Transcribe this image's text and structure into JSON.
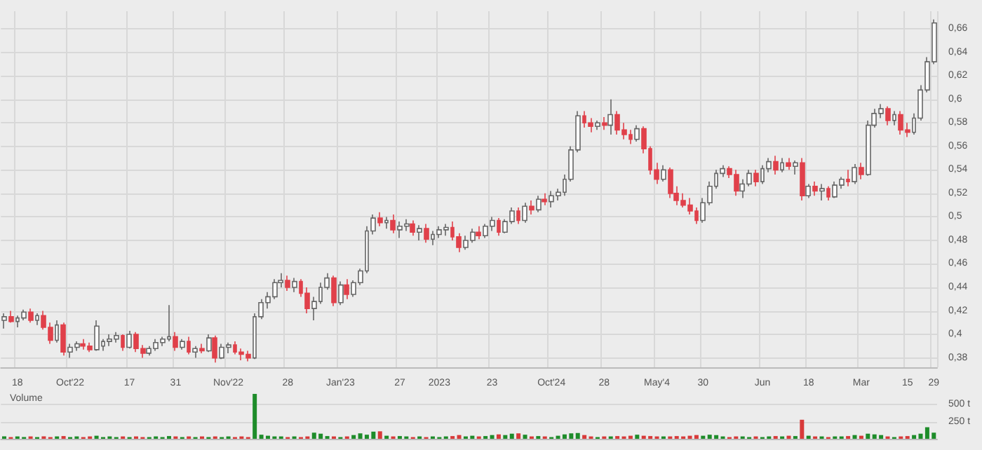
{
  "chart_data": [
    {
      "type": "candlestick",
      "grid": true,
      "colors": [
        "#ffffff",
        "#e0404a",
        "#ffffff",
        "#ffffff",
        "#e0404a",
        "#ffffff",
        "#e0404a",
        "#e0404a",
        "#ffffff",
        "#e0404a",
        "#ffffff",
        "#ffffff",
        "#e0404a",
        "#e0404a",
        "#ffffff",
        "#ffffff",
        "#ffffff",
        "#ffffff",
        "#e0404a",
        "#ffffff",
        "#e0404a",
        "#e0404a",
        "#ffffff",
        "#ffffff",
        "#ffffff",
        "#ffffff",
        "#e0404a",
        "#ffffff",
        "#e0404a",
        "#ffffff",
        "#e0404a",
        "#ffffff",
        "#e0404a",
        "#ffffff",
        "#ffffff",
        "#e0404a",
        "#e0404a",
        "#e0404a",
        "#ffffff",
        "#ffffff",
        "#ffffff",
        "#ffffff",
        "#ffffff",
        "#e0404a",
        "#ffffff",
        "#e0404a",
        "#e0404a",
        "#ffffff",
        "#ffffff",
        "#ffffff",
        "#e0404a",
        "#ffffff",
        "#e0404a",
        "#ffffff",
        "#ffffff",
        "#ffffff",
        "#ffffff",
        "#e0404a",
        "#ffffff",
        "#e0404a",
        "#ffffff",
        "#ffffff",
        "#e0404a",
        "#ffffff",
        "#e0404a",
        "#ffffff",
        "#ffffff",
        "#ffffff",
        "#e0404a",
        "#e0404a",
        "#ffffff",
        "#ffffff",
        "#e0404a",
        "#ffffff",
        "#ffffff",
        "#e0404a",
        "#ffffff",
        "#ffffff",
        "#e0404a",
        "#ffffff",
        "#e0404a",
        "#ffffff",
        "#e0404a",
        "#ffffff",
        "#ffffff",
        "#ffffff",
        "#ffffff",
        "#ffffff",
        "#e0404a",
        "#e0404a",
        "#ffffff",
        "#e0404a",
        "#ffffff",
        "#e0404a",
        "#e0404a",
        "#e0404a",
        "#ffffff",
        "#e0404a",
        "#e0404a",
        "#e0404a",
        "#ffffff",
        "#e0404a",
        "#e0404a",
        "#e0404a",
        "#e0404a",
        "#e0404a",
        "#ffffff",
        "#ffffff",
        "#ffffff",
        "#ffffff",
        "#e0404a",
        "#e0404a",
        "#ffffff",
        "#ffffff",
        "#e0404a",
        "#ffffff",
        "#ffffff",
        "#e0404a",
        "#ffffff",
        "#e0404a",
        "#ffffff",
        "#e0404a",
        "#ffffff",
        "#e0404a",
        "#ffffff",
        "#e0404a",
        "#ffffff",
        "#ffffff",
        "#e0404a",
        "#ffffff",
        "#e0404a",
        "#ffffff",
        "#ffffff",
        "#ffffff",
        "#e0404a",
        "#ffffff",
        "#e0404a",
        "#e0404a",
        "#ffffff",
        "#ffffff",
        "#ffffff",
        "#ffffff"
      ],
      "ylim": [
        0.372,
        0.675
      ],
      "yticks": [
        {
          "value": 0.38,
          "label": "0,38"
        },
        {
          "value": 0.4,
          "label": "0,4"
        },
        {
          "value": 0.42,
          "label": "0,42"
        },
        {
          "value": 0.44,
          "label": "0,44"
        },
        {
          "value": 0.46,
          "label": "0,46"
        },
        {
          "value": 0.48,
          "label": "0,48"
        },
        {
          "value": 0.5,
          "label": "0,5"
        },
        {
          "value": 0.52,
          "label": "0,52"
        },
        {
          "value": 0.54,
          "label": "0,54"
        },
        {
          "value": 0.56,
          "label": "0,56"
        },
        {
          "value": 0.58,
          "label": "0,58"
        },
        {
          "value": 0.6,
          "label": "0,6"
        },
        {
          "value": 0.62,
          "label": "0,62"
        },
        {
          "value": 0.64,
          "label": "0,64"
        },
        {
          "value": 0.66,
          "label": "0,66"
        }
      ],
      "categories": [
        null,
        null,
        "18",
        null,
        null,
        null,
        null,
        null,
        null,
        null,
        "Oct'22",
        null,
        null,
        null,
        null,
        null,
        null,
        null,
        null,
        "17",
        null,
        null,
        null,
        null,
        null,
        null,
        "31",
        null,
        null,
        null,
        null,
        null,
        null,
        null,
        "Nov'22",
        null,
        null,
        null,
        null,
        null,
        null,
        null,
        null,
        "28",
        null,
        null,
        null,
        null,
        null,
        null,
        null,
        "Jan'23",
        null,
        null,
        null,
        null,
        null,
        null,
        null,
        null,
        "27",
        null,
        null,
        null,
        null,
        null,
        "2023",
        null,
        null,
        null,
        null,
        null,
        null,
        null,
        "23",
        null,
        null,
        null,
        null,
        null,
        null,
        null,
        null,
        "Oct'24",
        null,
        null,
        null,
        null,
        null,
        null,
        null,
        "28",
        null,
        null,
        null,
        null,
        null,
        null,
        null,
        "May'4",
        null,
        null,
        null,
        null,
        null,
        null,
        "30",
        null,
        null,
        null,
        null,
        null,
        null,
        null,
        null,
        "Jun",
        null,
        null,
        null,
        null,
        null,
        null,
        "18",
        null,
        null,
        null,
        null,
        null,
        null,
        null,
        "Mar",
        null,
        null,
        null,
        null,
        null,
        null,
        "15",
        null,
        null,
        null,
        "29"
      ],
      "ohlc": [
        [
          0.412,
          0.418,
          0.405,
          0.415
        ],
        [
          0.415,
          0.42,
          0.41,
          0.411
        ],
        [
          0.411,
          0.416,
          0.406,
          0.414
        ],
        [
          0.414,
          0.421,
          0.412,
          0.419
        ],
        [
          0.419,
          0.422,
          0.41,
          0.412
        ],
        [
          0.412,
          0.418,
          0.408,
          0.416
        ],
        [
          0.416,
          0.42,
          0.404,
          0.406
        ],
        [
          0.406,
          0.41,
          0.392,
          0.395
        ],
        [
          0.395,
          0.412,
          0.393,
          0.408
        ],
        [
          0.408,
          0.41,
          0.382,
          0.385
        ],
        [
          0.385,
          0.392,
          0.38,
          0.389
        ],
        [
          0.389,
          0.394,
          0.386,
          0.392
        ],
        [
          0.392,
          0.396,
          0.387,
          0.39
        ],
        [
          0.39,
          0.393,
          0.385,
          0.387
        ],
        [
          0.387,
          0.412,
          0.386,
          0.407
        ],
        [
          0.39,
          0.396,
          0.386,
          0.394
        ],
        [
          0.394,
          0.4,
          0.39,
          0.396
        ],
        [
          0.396,
          0.402,
          0.393,
          0.399
        ],
        [
          0.399,
          0.4,
          0.386,
          0.389
        ],
        [
          0.389,
          0.403,
          0.388,
          0.4
        ],
        [
          0.4,
          0.402,
          0.385,
          0.388
        ],
        [
          0.388,
          0.391,
          0.38,
          0.384
        ],
        [
          0.384,
          0.39,
          0.382,
          0.388
        ],
        [
          0.388,
          0.396,
          0.386,
          0.393
        ],
        [
          0.393,
          0.398,
          0.39,
          0.396
        ],
        [
          0.396,
          0.425,
          0.394,
          0.398
        ],
        [
          0.398,
          0.402,
          0.386,
          0.389
        ],
        [
          0.389,
          0.396,
          0.387,
          0.394
        ],
        [
          0.394,
          0.398,
          0.383,
          0.385
        ],
        [
          0.385,
          0.39,
          0.38,
          0.388
        ],
        [
          0.388,
          0.392,
          0.384,
          0.386
        ],
        [
          0.386,
          0.4,
          0.385,
          0.397
        ],
        [
          0.397,
          0.399,
          0.376,
          0.38
        ],
        [
          0.38,
          0.392,
          0.379,
          0.389
        ],
        [
          0.389,
          0.393,
          0.384,
          0.391
        ],
        [
          0.391,
          0.394,
          0.383,
          0.385
        ],
        [
          0.385,
          0.388,
          0.378,
          0.383
        ],
        [
          0.383,
          0.386,
          0.377,
          0.38
        ],
        [
          0.38,
          0.418,
          0.379,
          0.415
        ],
        [
          0.415,
          0.43,
          0.413,
          0.427
        ],
        [
          0.427,
          0.436,
          0.422,
          0.432
        ],
        [
          0.432,
          0.447,
          0.43,
          0.444
        ],
        [
          0.444,
          0.452,
          0.44,
          0.446
        ],
        [
          0.446,
          0.45,
          0.437,
          0.44
        ],
        [
          0.44,
          0.448,
          0.436,
          0.445
        ],
        [
          0.445,
          0.447,
          0.432,
          0.435
        ],
        [
          0.435,
          0.44,
          0.418,
          0.422
        ],
        [
          0.422,
          0.432,
          0.412,
          0.428
        ],
        [
          0.428,
          0.444,
          0.426,
          0.44
        ],
        [
          0.44,
          0.452,
          0.438,
          0.448
        ],
        [
          0.448,
          0.45,
          0.424,
          0.427
        ],
        [
          0.427,
          0.445,
          0.425,
          0.442
        ],
        [
          0.442,
          0.447,
          0.43,
          0.434
        ],
        [
          0.434,
          0.446,
          0.432,
          0.444
        ],
        [
          0.444,
          0.456,
          0.442,
          0.454
        ],
        [
          0.454,
          0.492,
          0.452,
          0.488
        ],
        [
          0.488,
          0.502,
          0.485,
          0.499
        ],
        [
          0.499,
          0.504,
          0.492,
          0.495
        ],
        [
          0.495,
          0.5,
          0.49,
          0.497
        ],
        [
          0.497,
          0.502,
          0.486,
          0.489
        ],
        [
          0.489,
          0.496,
          0.482,
          0.492
        ],
        [
          0.492,
          0.498,
          0.488,
          0.494
        ],
        [
          0.494,
          0.497,
          0.484,
          0.487
        ],
        [
          0.487,
          0.493,
          0.48,
          0.49
        ],
        [
          0.49,
          0.494,
          0.478,
          0.481
        ],
        [
          0.481,
          0.488,
          0.476,
          0.485
        ],
        [
          0.485,
          0.492,
          0.482,
          0.489
        ],
        [
          0.489,
          0.494,
          0.484,
          0.491
        ],
        [
          0.491,
          0.496,
          0.48,
          0.483
        ],
        [
          0.483,
          0.486,
          0.47,
          0.474
        ],
        [
          0.474,
          0.484,
          0.472,
          0.48
        ],
        [
          0.48,
          0.49,
          0.478,
          0.487
        ],
        [
          0.487,
          0.492,
          0.481,
          0.484
        ],
        [
          0.484,
          0.494,
          0.482,
          0.492
        ],
        [
          0.492,
          0.5,
          0.488,
          0.497
        ],
        [
          0.497,
          0.499,
          0.484,
          0.487
        ],
        [
          0.487,
          0.498,
          0.486,
          0.496
        ],
        [
          0.496,
          0.508,
          0.494,
          0.505
        ],
        [
          0.505,
          0.508,
          0.494,
          0.497
        ],
        [
          0.497,
          0.512,
          0.495,
          0.509
        ],
        [
          0.509,
          0.514,
          0.502,
          0.506
        ],
        [
          0.506,
          0.518,
          0.504,
          0.515
        ],
        [
          0.515,
          0.52,
          0.51,
          0.513
        ],
        [
          0.513,
          0.522,
          0.508,
          0.518
        ],
        [
          0.518,
          0.524,
          0.514,
          0.521
        ],
        [
          0.521,
          0.536,
          0.518,
          0.532
        ],
        [
          0.532,
          0.56,
          0.53,
          0.557
        ],
        [
          0.557,
          0.59,
          0.555,
          0.586
        ],
        [
          0.586,
          0.59,
          0.576,
          0.58
        ],
        [
          0.58,
          0.584,
          0.572,
          0.577
        ],
        [
          0.577,
          0.582,
          0.574,
          0.58
        ],
        [
          0.58,
          0.585,
          0.574,
          0.578
        ],
        [
          0.578,
          0.6,
          0.57,
          0.587
        ],
        [
          0.587,
          0.59,
          0.57,
          0.574
        ],
        [
          0.574,
          0.58,
          0.566,
          0.57
        ],
        [
          0.57,
          0.574,
          0.562,
          0.566
        ],
        [
          0.566,
          0.578,
          0.564,
          0.575
        ],
        [
          0.575,
          0.577,
          0.554,
          0.558
        ],
        [
          0.558,
          0.56,
          0.536,
          0.54
        ],
        [
          0.54,
          0.546,
          0.528,
          0.532
        ],
        [
          0.532,
          0.544,
          0.53,
          0.54
        ],
        [
          0.54,
          0.542,
          0.516,
          0.52
        ],
        [
          0.52,
          0.526,
          0.51,
          0.514
        ],
        [
          0.514,
          0.52,
          0.508,
          0.51
        ],
        [
          0.51,
          0.516,
          0.502,
          0.505
        ],
        [
          0.505,
          0.508,
          0.494,
          0.497
        ],
        [
          0.497,
          0.516,
          0.495,
          0.512
        ],
        [
          0.512,
          0.53,
          0.51,
          0.526
        ],
        [
          0.526,
          0.54,
          0.524,
          0.537
        ],
        [
          0.537,
          0.544,
          0.534,
          0.541
        ],
        [
          0.541,
          0.543,
          0.533,
          0.536
        ],
        [
          0.536,
          0.54,
          0.518,
          0.522
        ],
        [
          0.522,
          0.532,
          0.516,
          0.528
        ],
        [
          0.528,
          0.54,
          0.526,
          0.537
        ],
        [
          0.537,
          0.54,
          0.526,
          0.53
        ],
        [
          0.53,
          0.544,
          0.528,
          0.541
        ],
        [
          0.541,
          0.55,
          0.538,
          0.547
        ],
        [
          0.547,
          0.552,
          0.536,
          0.54
        ],
        [
          0.54,
          0.55,
          0.538,
          0.546
        ],
        [
          0.546,
          0.55,
          0.54,
          0.543
        ],
        [
          0.543,
          0.548,
          0.536,
          0.546
        ],
        [
          0.546,
          0.55,
          0.514,
          0.518
        ],
        [
          0.518,
          0.528,
          0.516,
          0.526
        ],
        [
          0.526,
          0.53,
          0.518,
          0.522
        ],
        [
          0.522,
          0.528,
          0.514,
          0.524
        ],
        [
          0.524,
          0.526,
          0.514,
          0.517
        ],
        [
          0.517,
          0.53,
          0.516,
          0.527
        ],
        [
          0.527,
          0.534,
          0.524,
          0.532
        ],
        [
          0.532,
          0.54,
          0.526,
          0.53
        ],
        [
          0.53,
          0.545,
          0.528,
          0.542
        ],
        [
          0.542,
          0.546,
          0.532,
          0.536
        ],
        [
          0.536,
          0.582,
          0.535,
          0.578
        ],
        [
          0.578,
          0.592,
          0.576,
          0.588
        ],
        [
          0.588,
          0.596,
          0.584,
          0.592
        ],
        [
          0.592,
          0.594,
          0.578,
          0.582
        ],
        [
          0.582,
          0.59,
          0.578,
          0.587
        ],
        [
          0.587,
          0.59,
          0.57,
          0.574
        ],
        [
          0.574,
          0.58,
          0.568,
          0.572
        ],
        [
          0.572,
          0.588,
          0.57,
          0.584
        ],
        [
          0.584,
          0.612,
          0.582,
          0.608
        ],
        [
          0.608,
          0.636,
          0.606,
          0.632
        ],
        [
          0.632,
          0.668,
          0.63,
          0.665
        ]
      ]
    },
    {
      "type": "bar",
      "title": "Volume",
      "grid": "y",
      "ylim": [
        0,
        680
      ],
      "yticks": [
        {
          "value": 250,
          "label": "250 t"
        },
        {
          "value": 500,
          "label": "500 t"
        }
      ],
      "categories": [
        null,
        null,
        null,
        null,
        null,
        null,
        null,
        null,
        null,
        null,
        null,
        null,
        null,
        null,
        null,
        null,
        null,
        null,
        null,
        null,
        null,
        null,
        null,
        null,
        null,
        null,
        null,
        null,
        null,
        null,
        null,
        null,
        null,
        null,
        null,
        null,
        null,
        null,
        null,
        null,
        null,
        null,
        null,
        null,
        null,
        null,
        null,
        null,
        null,
        null,
        null,
        null,
        null,
        null,
        null,
        null,
        null,
        null,
        null,
        null,
        null,
        null,
        null,
        null,
        null,
        null,
        null,
        null,
        null,
        null,
        null,
        null,
        null,
        null,
        null,
        null,
        null,
        null,
        null,
        null,
        null,
        null,
        null,
        null,
        null,
        null,
        null,
        null,
        null,
        null,
        null,
        null,
        null,
        null,
        null,
        null,
        null,
        null,
        null,
        null,
        null,
        null,
        null,
        null,
        null,
        null,
        null,
        null,
        null,
        null,
        null,
        null,
        null,
        null,
        null,
        null,
        null,
        null,
        null,
        null,
        null,
        null,
        null,
        null,
        null,
        null,
        null,
        null,
        null,
        null,
        null,
        null,
        null,
        null,
        null,
        null,
        null,
        null,
        null,
        null,
        null,
        null
      ],
      "values": [
        35,
        25,
        35,
        25,
        35,
        25,
        35,
        25,
        35,
        40,
        25,
        35,
        25,
        35,
        45,
        25,
        35,
        25,
        35,
        25,
        35,
        25,
        25,
        35,
        25,
        40,
        35,
        25,
        35,
        25,
        35,
        25,
        35,
        25,
        35,
        25,
        35,
        25,
        660,
        60,
        45,
        35,
        35,
        25,
        35,
        25,
        35,
        90,
        75,
        40,
        35,
        25,
        35,
        55,
        80,
        60,
        105,
        110,
        45,
        35,
        40,
        35,
        25,
        35,
        25,
        35,
        25,
        35,
        40,
        55,
        35,
        45,
        35,
        40,
        55,
        65,
        55,
        75,
        80,
        60,
        35,
        40,
        35,
        25,
        45,
        65,
        80,
        85,
        55,
        35,
        25,
        35,
        35,
        40,
        35,
        45,
        60,
        45,
        40,
        35,
        35,
        35,
        40,
        35,
        45,
        55,
        45,
        60,
        55,
        35,
        25,
        35,
        35,
        25,
        35,
        25,
        35,
        40,
        35,
        45,
        40,
        280,
        45,
        35,
        35,
        25,
        35,
        35,
        40,
        55,
        45,
        75,
        65,
        55,
        35,
        25,
        35,
        40,
        55,
        75,
        170,
        90
      ],
      "colors": [
        "#1e8c2a",
        "#d83a3a",
        "#1e8c2a",
        "#1e8c2a",
        "#d83a3a",
        "#1e8c2a",
        "#d83a3a",
        "#d83a3a",
        "#1e8c2a",
        "#d83a3a",
        "#1e8c2a",
        "#1e8c2a",
        "#d83a3a",
        "#d83a3a",
        "#1e8c2a",
        "#1e8c2a",
        "#1e8c2a",
        "#1e8c2a",
        "#d83a3a",
        "#1e8c2a",
        "#d83a3a",
        "#d83a3a",
        "#1e8c2a",
        "#1e8c2a",
        "#1e8c2a",
        "#1e8c2a",
        "#d83a3a",
        "#1e8c2a",
        "#d83a3a",
        "#1e8c2a",
        "#d83a3a",
        "#1e8c2a",
        "#d83a3a",
        "#1e8c2a",
        "#1e8c2a",
        "#d83a3a",
        "#d83a3a",
        "#d83a3a",
        "#1e8c2a",
        "#1e8c2a",
        "#1e8c2a",
        "#1e8c2a",
        "#1e8c2a",
        "#d83a3a",
        "#1e8c2a",
        "#d83a3a",
        "#d83a3a",
        "#1e8c2a",
        "#1e8c2a",
        "#1e8c2a",
        "#d83a3a",
        "#1e8c2a",
        "#d83a3a",
        "#1e8c2a",
        "#1e8c2a",
        "#1e8c2a",
        "#1e8c2a",
        "#d83a3a",
        "#1e8c2a",
        "#d83a3a",
        "#1e8c2a",
        "#1e8c2a",
        "#d83a3a",
        "#1e8c2a",
        "#d83a3a",
        "#1e8c2a",
        "#1e8c2a",
        "#1e8c2a",
        "#d83a3a",
        "#d83a3a",
        "#1e8c2a",
        "#1e8c2a",
        "#d83a3a",
        "#1e8c2a",
        "#1e8c2a",
        "#d83a3a",
        "#1e8c2a",
        "#1e8c2a",
        "#d83a3a",
        "#1e8c2a",
        "#d83a3a",
        "#1e8c2a",
        "#d83a3a",
        "#1e8c2a",
        "#1e8c2a",
        "#1e8c2a",
        "#1e8c2a",
        "#1e8c2a",
        "#d83a3a",
        "#d83a3a",
        "#1e8c2a",
        "#d83a3a",
        "#1e8c2a",
        "#d83a3a",
        "#d83a3a",
        "#d83a3a",
        "#1e8c2a",
        "#d83a3a",
        "#d83a3a",
        "#d83a3a",
        "#1e8c2a",
        "#d83a3a",
        "#d83a3a",
        "#d83a3a",
        "#d83a3a",
        "#d83a3a",
        "#1e8c2a",
        "#1e8c2a",
        "#1e8c2a",
        "#1e8c2a",
        "#d83a3a",
        "#d83a3a",
        "#1e8c2a",
        "#1e8c2a",
        "#d83a3a",
        "#1e8c2a",
        "#1e8c2a",
        "#d83a3a",
        "#1e8c2a",
        "#d83a3a",
        "#1e8c2a",
        "#d83a3a",
        "#1e8c2a",
        "#d83a3a",
        "#1e8c2a",
        "#d83a3a",
        "#1e8c2a",
        "#1e8c2a",
        "#d83a3a",
        "#1e8c2a",
        "#d83a3a",
        "#1e8c2a",
        "#1e8c2a",
        "#1e8c2a",
        "#d83a3a",
        "#1e8c2a",
        "#d83a3a",
        "#d83a3a",
        "#1e8c2a",
        "#1e8c2a",
        "#1e8c2a",
        "#1e8c2a"
      ]
    }
  ]
}
